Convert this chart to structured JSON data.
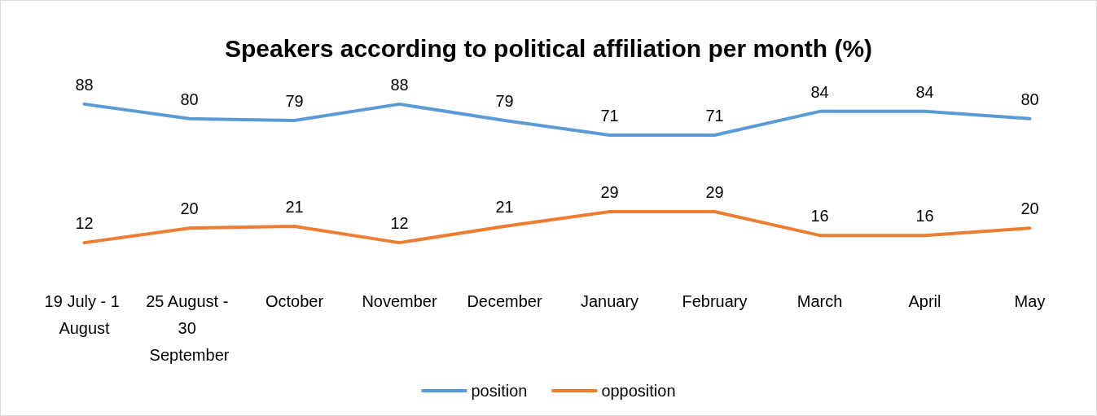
{
  "chart_data": {
    "type": "line",
    "title": "Speakers according to political affiliation per month (%)",
    "categories": [
      "19 July - 1 August",
      "25 August - 30 September",
      "October",
      "November",
      "December",
      "January",
      "February",
      "March",
      "April",
      "May"
    ],
    "series": [
      {
        "name": "position",
        "color": "#5b9bd5",
        "values": [
          88,
          80,
          79,
          88,
          79,
          71,
          71,
          84,
          84,
          80
        ]
      },
      {
        "name": "opposition",
        "color": "#ed7d31",
        "values": [
          12,
          20,
          21,
          12,
          21,
          29,
          29,
          16,
          16,
          20
        ]
      }
    ],
    "data_labels": true,
    "legend": "bottom",
    "marker": "none",
    "line_style": "solid"
  }
}
